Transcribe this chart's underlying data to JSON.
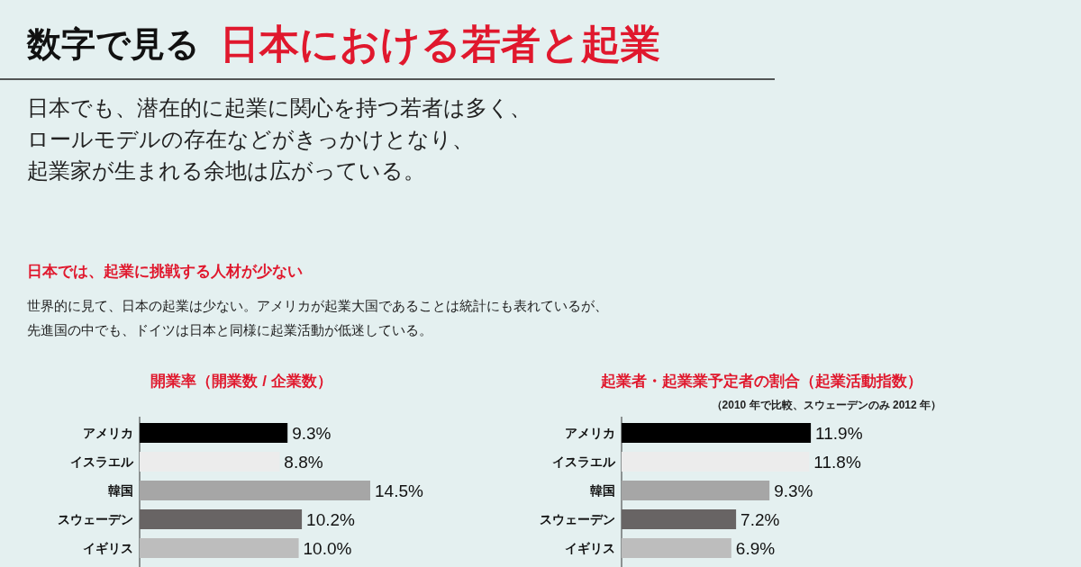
{
  "chart_data": [
    {
      "type": "other",
      "title": "数字で見る",
      "subtitle": "日本における若者と起業",
      "annotations": [
        "日本でも、潜在的に起業に関心を持つ若者は多く、",
        "ロールモデルの存在などがきっかけとなり、",
        "起業家が生まれる余地は広がっている。",
        "日本では、起業に挑戦する人材が少ない",
        "世界的に見て、日本の起業は少ない。アメリカが起業大国であることは統計にも表れているが、",
        "先進国の中でも、ドイツは日本と同様に起業活動が低迷している。"
      ]
    },
    {
      "type": "bar",
      "orientation": "horizontal",
      "title": "開業率（開業数 / 企業数）",
      "categories": [
        "アメリカ",
        "イスラエル",
        "韓国",
        "スウェーデン",
        "イギリス"
      ],
      "values": [
        9.3,
        8.8,
        14.5,
        10.2,
        10.0
      ],
      "value_labels": [
        "9.3%",
        "8.8%",
        "14.5%",
        "10.2%",
        "10.0%"
      ],
      "colors": [
        "#000000",
        "#ececec",
        "#a6a6a6",
        "#686464",
        "#bdbdbd"
      ]
    },
    {
      "type": "bar",
      "orientation": "horizontal",
      "title": "起業者・起業業予定者の割合（起業活動指数）",
      "subtitle": "（2010 年で比較、スウェーデンのみ 2012 年）",
      "categories": [
        "アメリカ",
        "イスラエル",
        "韓国",
        "スウェーデン",
        "イギリス"
      ],
      "values": [
        11.9,
        11.8,
        9.3,
        7.2,
        6.9
      ],
      "value_labels": [
        "11.9%",
        "11.8%",
        "9.3%",
        "7.2%",
        "6.9%"
      ],
      "colors": [
        "#000000",
        "#ececec",
        "#a6a6a6",
        "#686464",
        "#bdbdbd"
      ]
    }
  ]
}
